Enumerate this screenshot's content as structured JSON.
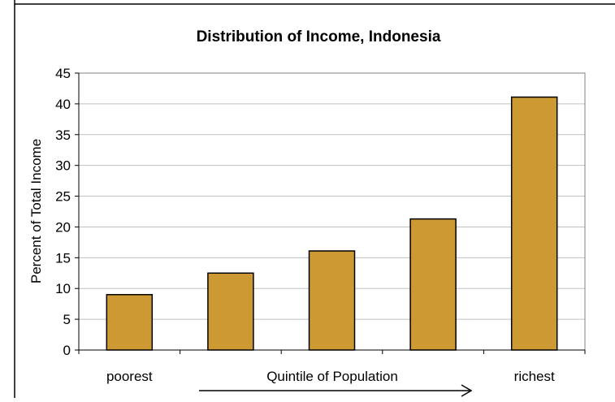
{
  "chart_data": {
    "type": "bar",
    "title": "Distribution of Income, Indonesia",
    "ylabel": "Percent of Total Income",
    "xlabel": "Quintile of Population",
    "categories": [
      "poorest",
      "",
      "",
      "",
      "richest"
    ],
    "values": [
      9,
      12.5,
      16.1,
      21.3,
      41.1
    ],
    "ylim": [
      0,
      45
    ],
    "yticks": [
      "0",
      "5",
      "10",
      "15",
      "20",
      "25",
      "30",
      "35",
      "40",
      "45"
    ],
    "grid": true,
    "colors": {
      "bar_fill": "#CC9933",
      "bar_stroke": "#000000",
      "grid": "#C0C0C0",
      "plot_border": "#808080"
    }
  }
}
